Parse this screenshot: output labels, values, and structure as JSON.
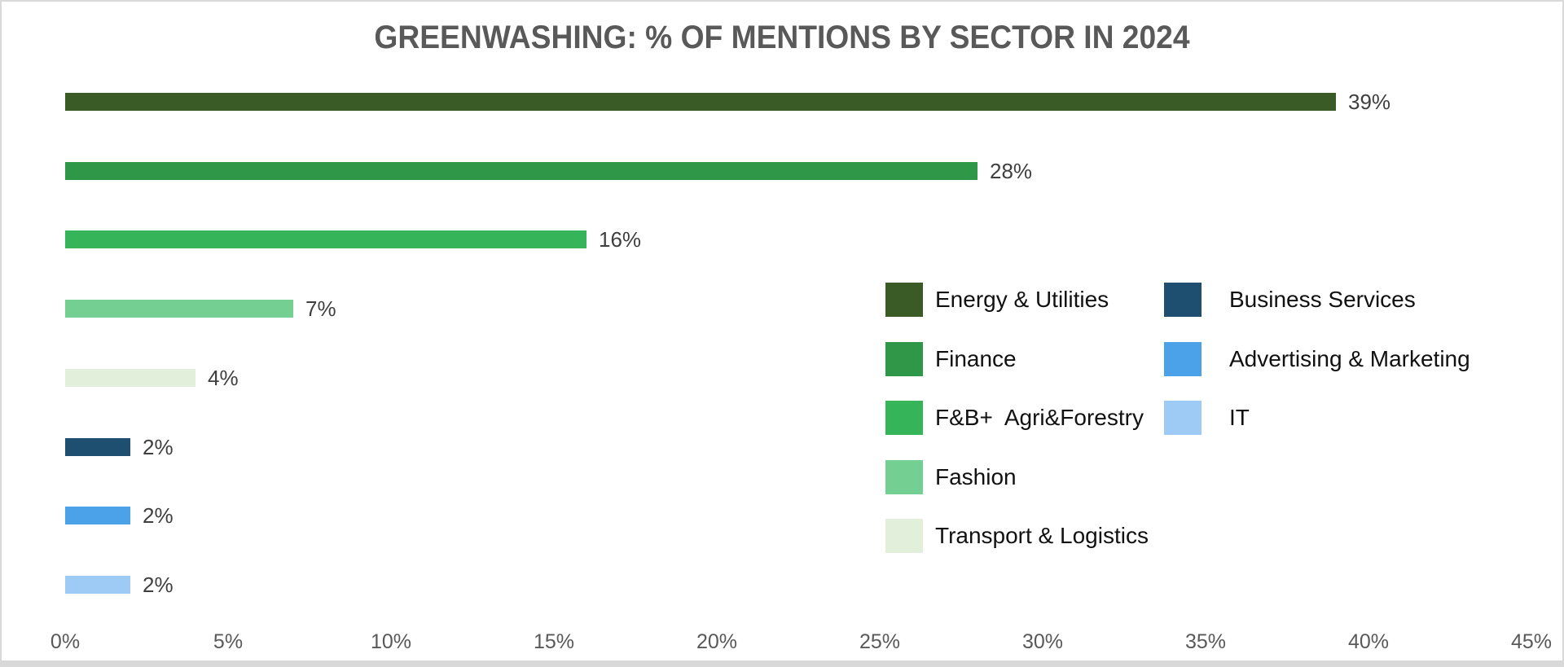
{
  "frame": {
    "background": "#FFFFFF",
    "border_color": "#D9D9D9"
  },
  "chart_data": {
    "type": "bar",
    "orientation": "horizontal",
    "title": "GREENWASHING: % OF MENTIONS BY SECTOR IN 2024",
    "title_color": "#595959",
    "categories": [
      "Energy & Utilities",
      "Finance",
      "F&B+  Agri&Forestry",
      "Fashion",
      "Transport & Logistics",
      "Business Services",
      "Advertising & Marketing",
      "IT"
    ],
    "values": [
      39,
      28,
      16,
      7,
      4,
      2,
      2,
      2
    ],
    "data_labels": [
      "39%",
      "28%",
      "16%",
      "7%",
      "4%",
      "2%",
      "2%",
      "2%"
    ],
    "colors": [
      "#3B5B26",
      "#2E9748",
      "#36B45A",
      "#74D092",
      "#E2EFDA",
      "#1E4E70",
      "#4BA2E9",
      "#9ECBF5"
    ],
    "xlabel": "",
    "ylabel": "",
    "xlim": [
      0,
      45
    ],
    "x_tick_step": 5,
    "x_ticks": [
      "0%",
      "5%",
      "10%",
      "15%",
      "20%",
      "25%",
      "30%",
      "35%",
      "40%",
      "45%"
    ],
    "gridlines": false,
    "data_label_color": "#3F3F3F",
    "axis_label_color": "#595959",
    "legend": {
      "position": "center-right",
      "columns": [
        [
          {
            "label": "Energy & Utilities",
            "color": "#3B5B26"
          },
          {
            "label": "Finance",
            "color": "#2E9748"
          },
          {
            "label": "F&B+  Agri&Forestry",
            "color": "#36B45A"
          },
          {
            "label": "Fashion",
            "color": "#74D092"
          },
          {
            "label": "Transport & Logistics",
            "color": "#E2EFDA"
          }
        ],
        [
          {
            "label": "Business Services",
            "color": "#1E4E70"
          },
          {
            "label": "Advertising & Marketing",
            "color": "#4BA2E9"
          },
          {
            "label": "IT",
            "color": "#9ECBF5"
          }
        ]
      ]
    }
  }
}
